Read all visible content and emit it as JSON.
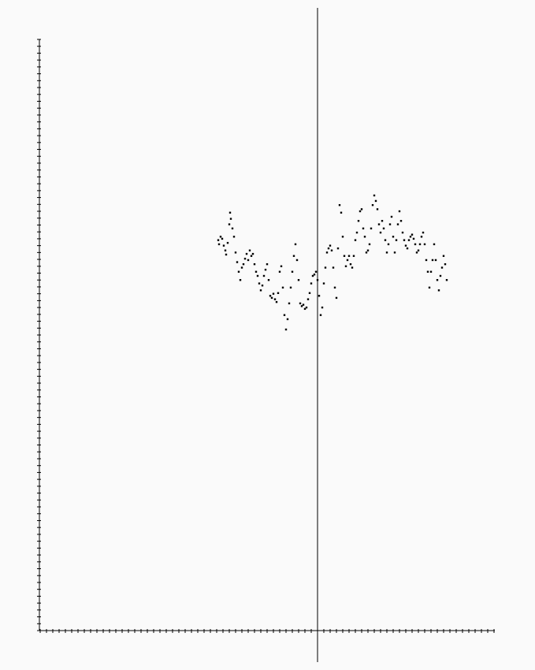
{
  "chart_data": {
    "type": "scatter",
    "color": "#000000",
    "xlim": [
      -353,
      225
    ],
    "ylim": [
      0,
      860
    ],
    "xticks": [
      -352,
      -344,
      -336,
      -328,
      -320,
      -312,
      -304,
      -296,
      -288,
      -280,
      -272,
      -264,
      -256,
      -248,
      -240,
      -232,
      -224,
      -216,
      -208,
      -200,
      -192,
      -184,
      -176,
      -168,
      -160,
      -152,
      -144,
      -136,
      -128,
      -120,
      -112,
      -104,
      -96,
      -88,
      -80,
      -72,
      -64,
      -56,
      -48,
      -40,
      -32,
      -24,
      -16,
      -8,
      0,
      8,
      16,
      24,
      32,
      40,
      48,
      56,
      64,
      72,
      80,
      88,
      96,
      104,
      112,
      120,
      128,
      136,
      144,
      152,
      160,
      168,
      176,
      184,
      192,
      200,
      208,
      216,
      224
    ],
    "yticks": [
      0,
      10,
      20,
      30,
      40,
      50,
      60,
      70,
      80,
      90,
      100,
      110,
      120,
      130,
      140,
      150,
      160,
      170,
      180,
      190,
      200,
      210,
      220,
      230,
      240,
      250,
      260,
      270,
      280,
      290,
      300,
      310,
      320,
      330,
      340,
      350,
      360,
      370,
      380,
      390,
      400,
      410,
      420,
      430,
      440,
      450,
      460,
      470,
      480,
      490,
      500,
      510,
      520,
      530,
      540,
      550,
      560,
      570,
      580,
      590,
      600,
      610,
      620,
      630,
      640,
      650,
      660,
      670,
      680,
      690,
      700,
      710,
      720,
      730,
      740,
      750,
      760,
      770,
      780,
      790,
      800,
      810,
      820,
      830,
      840,
      850,
      860
    ],
    "x": [
      -126,
      -125,
      -123,
      -121,
      -119,
      -117,
      -116,
      -114,
      -112,
      -111,
      -110,
      -108,
      -106,
      -104,
      -102,
      -100,
      -98,
      -96,
      -94,
      -92,
      -90,
      -88,
      -86,
      -84,
      -82,
      -80,
      -78,
      -76,
      -74,
      -72,
      -70,
      -68,
      -66,
      -64,
      -62,
      -60,
      -58,
      -56,
      -54,
      -52,
      -50,
      -48,
      -46,
      -44,
      -42,
      -40,
      -38,
      -36,
      -34,
      -32,
      -30,
      -28,
      -26,
      -24,
      -22,
      -20,
      -18,
      -16,
      -14,
      -12,
      -10,
      -8,
      -6,
      -4,
      -2,
      0,
      2,
      4,
      6,
      8,
      10,
      12,
      14,
      16,
      18,
      20,
      22,
      24,
      26,
      28,
      30,
      32,
      34,
      36,
      38,
      40,
      42,
      44,
      46,
      48,
      50,
      52,
      54,
      56,
      58,
      60,
      62,
      64,
      66,
      68,
      70,
      72,
      74,
      76,
      78,
      80,
      82,
      84,
      86,
      88,
      90,
      92,
      94,
      96,
      98,
      100,
      102,
      104,
      106,
      108,
      110,
      112,
      114,
      116,
      118,
      120,
      122,
      124,
      126,
      128,
      130,
      132,
      134,
      136,
      138,
      140,
      142,
      144,
      146,
      148,
      150,
      152,
      154,
      156,
      158,
      160,
      162,
      164
    ],
    "values": [
      568,
      562,
      573,
      570,
      560,
      553,
      547,
      564,
      591,
      608,
      599,
      585,
      573,
      550,
      536,
      522,
      510,
      528,
      533,
      541,
      548,
      539,
      553,
      545,
      548,
      533,
      522,
      516,
      505,
      495,
      502,
      516,
      525,
      533,
      510,
      487,
      484,
      490,
      482,
      478,
      491,
      522,
      530,
      499,
      459,
      438,
      453,
      476,
      499,
      522,
      545,
      562,
      539,
      510,
      476,
      472,
      474,
      468,
      470,
      482,
      491,
      505,
      516,
      518,
      522,
      510,
      487,
      459,
      470,
      505,
      528,
      550,
      556,
      560,
      553,
      528,
      499,
      484,
      556,
      619,
      608,
      573,
      545,
      530,
      539,
      545,
      533,
      528,
      545,
      568,
      579,
      596,
      610,
      613,
      585,
      573,
      550,
      553,
      562,
      585,
      619,
      633,
      625,
      613,
      591,
      579,
      596,
      585,
      568,
      550,
      562,
      591,
      602,
      573,
      550,
      568,
      591,
      610,
      596,
      579,
      568,
      560,
      556,
      568,
      573,
      576,
      570,
      562,
      550,
      553,
      562,
      573,
      579,
      562,
      539,
      522,
      499,
      522,
      539,
      562,
      539,
      510,
      495,
      516,
      528,
      545,
      533,
      510
    ]
  }
}
